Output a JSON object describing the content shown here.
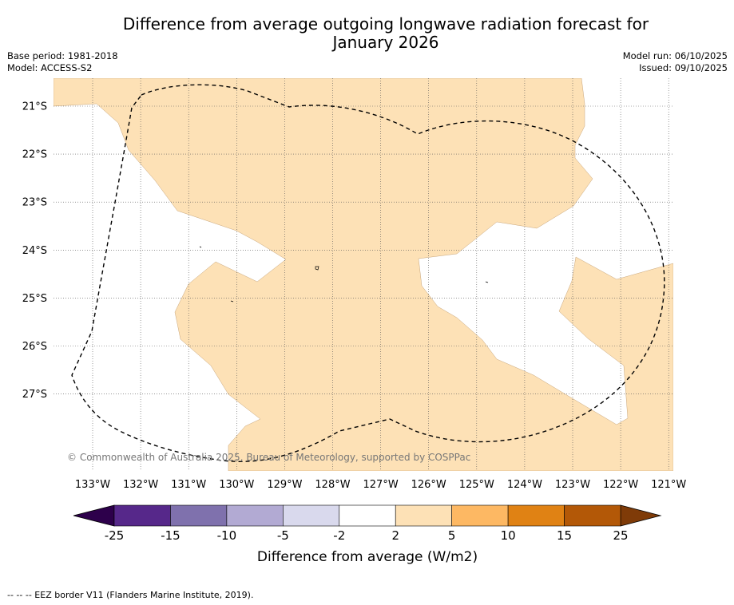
{
  "title_line1": "Difference from average outgoing longwave radiation forecast for",
  "title_line2": "January 2026",
  "base_period": "Base period: 1981-2018",
  "model": "Model: ACCESS-S2",
  "model_run": "Model run: 06/10/2025",
  "issued": "Issued: 09/10/2025",
  "copyright": "© Commonwealth of Australia 2025, Bureau of Meteorology, supported by COSPPac",
  "lat_labels": [
    "21°S",
    "22°S",
    "23°S",
    "24°S",
    "25°S",
    "26°S",
    "27°S"
  ],
  "lon_labels": [
    "133°W",
    "132°W",
    "131°W",
    "130°W",
    "129°W",
    "128°W",
    "127°W",
    "126°W",
    "125°W",
    "124°W",
    "123°W",
    "122°W",
    "121°W"
  ],
  "colorbar": {
    "title": "Difference from average (W/m2)",
    "ticks": [
      "-25",
      "-15",
      "-10",
      "-5",
      "-2",
      "2",
      "5",
      "10",
      "15",
      "25"
    ],
    "colors": [
      "#56288a",
      "#7f71ad",
      "#b2aad3",
      "#d9d9ed",
      "#ffffff",
      "#fde1b6",
      "#fdb863",
      "#e08214",
      "#b35807"
    ],
    "low_extend_color": "#2d004b",
    "high_extend_color": "#7f3b08"
  },
  "footer": "--  --  -- EEZ border V11 (Flanders Marine Institute, 2019)."
}
